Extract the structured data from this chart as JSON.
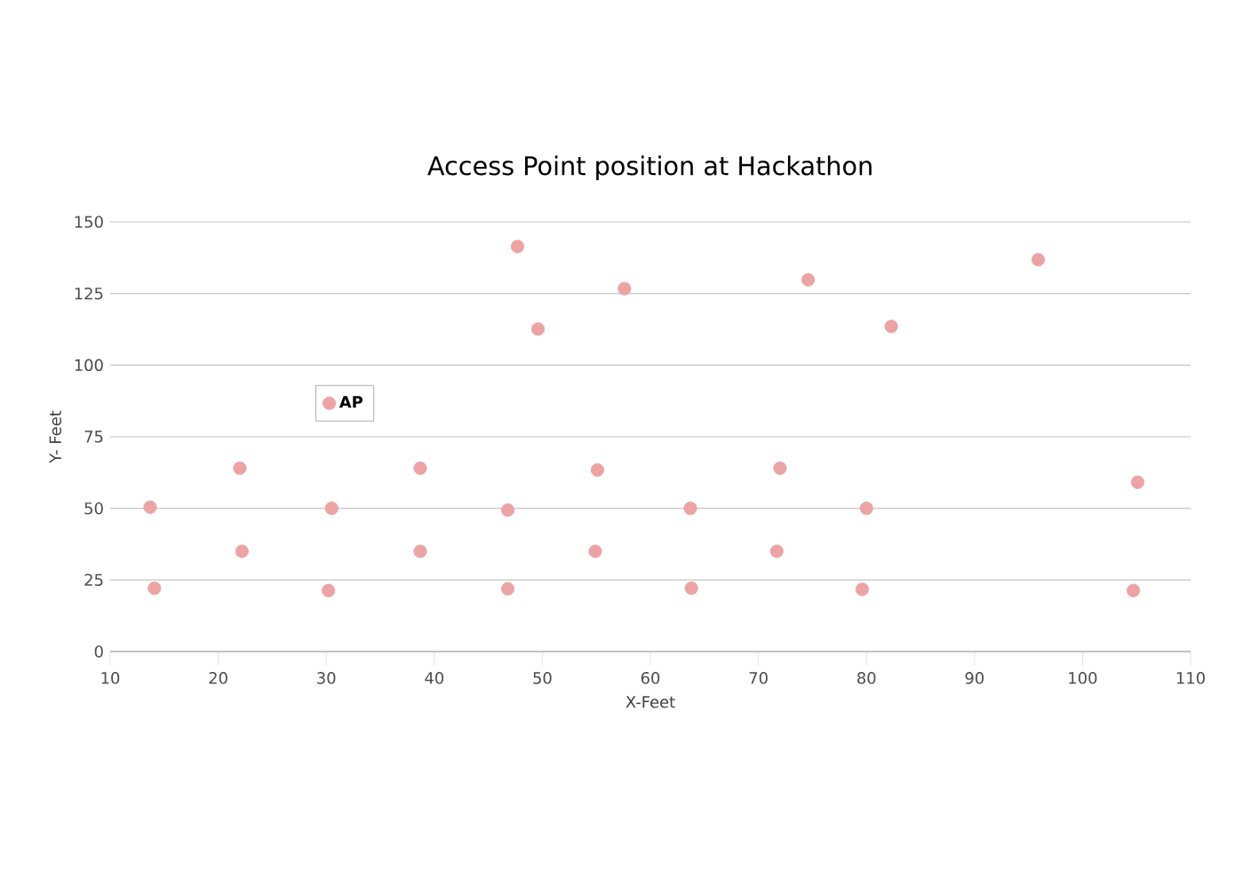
{
  "chart_data": {
    "type": "scatter",
    "title": "Access Point position at Hackathon",
    "xlabel": "X-Feet",
    "ylabel": "Y- Feet",
    "xlim": [
      10,
      110
    ],
    "xticks": [
      10,
      20,
      30,
      40,
      50,
      60,
      70,
      80,
      90,
      100,
      110
    ],
    "ylim": [
      0,
      150
    ],
    "yticks": [
      0,
      25,
      50,
      75,
      100,
      125,
      150
    ],
    "grid": "y",
    "legend": "top left",
    "marker": "circle",
    "series": [
      {
        "name": "AP",
        "color": "#eba3a3",
        "x": [
          13.7,
          14.1,
          22,
          22.2,
          30.5,
          30.2,
          38.7,
          38.7,
          46.8,
          46.8,
          47.7,
          49.6,
          57.6,
          55.1,
          54.9,
          63.7,
          63.8,
          72,
          71.7,
          74.6,
          82.3,
          80,
          79.6,
          95.9,
          105.1,
          104.7
        ],
        "values": [
          50.4,
          22.1,
          64,
          35,
          50,
          21.3,
          64,
          35,
          49.4,
          21.9,
          141.4,
          112.6,
          126.7,
          63.4,
          35,
          50,
          22.1,
          64,
          35,
          129.8,
          113.5,
          50,
          21.7,
          136.8,
          59.1,
          21.3
        ]
      }
    ]
  }
}
